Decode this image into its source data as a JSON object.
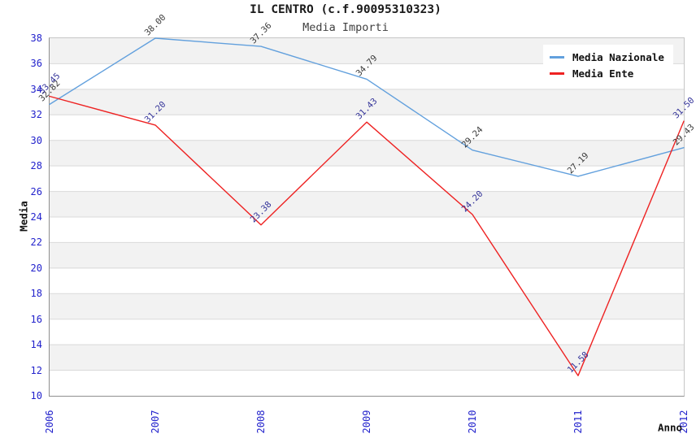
{
  "title": "IL CENTRO (c.f.90095310323)",
  "subtitle": "Media Importi",
  "legend": {
    "position": "top-right",
    "items": [
      {
        "label": "Media Nazionale",
        "color": "#62a0dd"
      },
      {
        "label": "Media Ente",
        "color": "#ee2222"
      }
    ]
  },
  "chart_data": {
    "type": "line",
    "title": "IL CENTRO (c.f.90095310323)",
    "subtitle": "Media Importi",
    "xlabel": "Anno",
    "ylabel": "Media",
    "x": [
      "2006",
      "2007",
      "2008",
      "2009",
      "2010",
      "2011",
      "2012"
    ],
    "series": [
      {
        "name": "Media Nazionale",
        "color": "#62a0dd",
        "label_color": "#3a3a3a",
        "values": [
          32.82,
          38.0,
          37.36,
          34.79,
          29.24,
          27.19,
          29.43
        ],
        "labels": [
          "32.82",
          "38.00",
          "37.36",
          "34.79",
          "29.24",
          "27.19",
          "29.43"
        ]
      },
      {
        "name": "Media Ente",
        "color": "#ee2222",
        "label_color": "#333399",
        "values": [
          33.45,
          31.2,
          23.38,
          31.43,
          24.2,
          11.58,
          31.5
        ],
        "labels": [
          "33.45",
          "31.20",
          "23.38",
          "31.43",
          "24.20",
          "11.58",
          "31.50"
        ]
      }
    ],
    "ylim": [
      10,
      38
    ],
    "ytick_step": 2,
    "yticks": [
      "38",
      "36",
      "34",
      "32",
      "30",
      "28",
      "26",
      "24",
      "22",
      "20",
      "18",
      "16",
      "14",
      "12",
      "10"
    ],
    "grid": true,
    "band_colors": [
      "#f2f2f2",
      "#ffffff"
    ],
    "gridline_color": "#d9d9d9",
    "tick_label_color": "#2222cc",
    "legend_position": "top-right"
  }
}
